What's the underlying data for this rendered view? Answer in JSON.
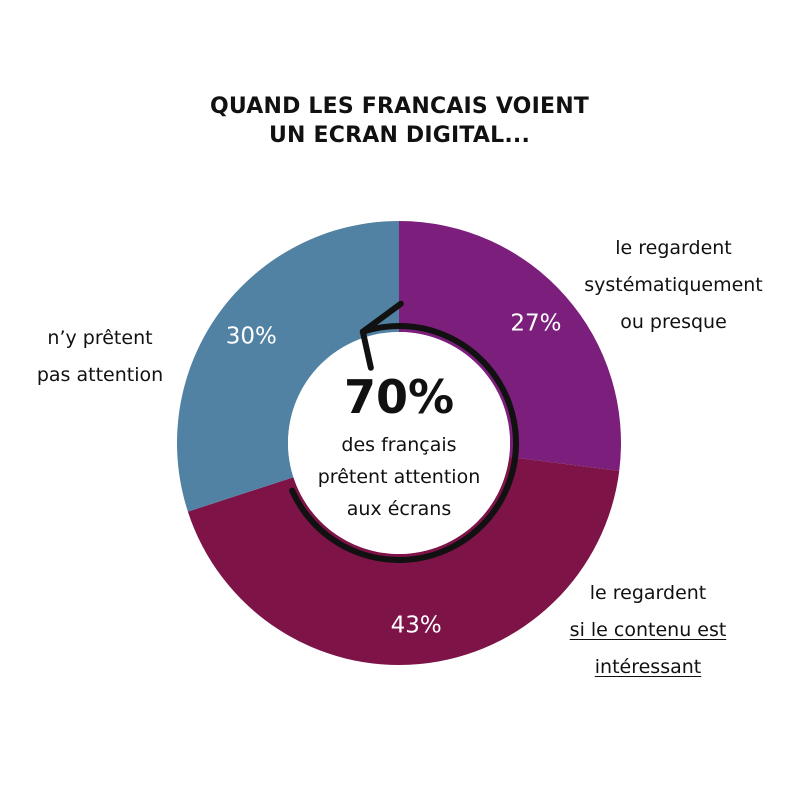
{
  "title": {
    "line1": "QUAND LES FRANCAIS VOIENT",
    "line2": "UN ECRAN DIGITAL..."
  },
  "center": {
    "value": "70%",
    "line1": "des français",
    "line2": "prêtent attention",
    "line3": "aux écrans"
  },
  "chart_data": {
    "type": "pie",
    "donut": true,
    "title": "QUAND LES FRANCAIS VOIENT UN ECRAN DIGITAL...",
    "start": "top, clockwise",
    "slices": [
      {
        "key": "systematique",
        "value": 27,
        "label": "27%",
        "color": "#7c1f7c",
        "annotation": [
          "le regardent",
          "systématiquement",
          "ou presque"
        ]
      },
      {
        "key": "contenu",
        "value": 43,
        "label": "43%",
        "color": "#7d1347",
        "annotation": [
          "le regardent",
          "si le contenu est",
          "intéressant"
        ]
      },
      {
        "key": "pas_attention",
        "value": 30,
        "label": "30%",
        "color": "#5282a3",
        "annotation": [
          "n’y prêtent",
          "pas attention"
        ]
      }
    ]
  },
  "labels": {
    "systematique": {
      "line1": "le regardent",
      "line2": "systématiquement",
      "line3": "ou presque"
    },
    "contenu": {
      "line1": "le regardent",
      "line2": "si le contenu est",
      "line3": "intéressant"
    },
    "pas_attention": {
      "line1": "n’y prêtent",
      "line2": "pas attention"
    }
  },
  "colors": {
    "systematique": "#7c1f7c",
    "contenu": "#7d1347",
    "pas_attention": "#5282a3",
    "arrow": "#111111",
    "center_fill": "#ffffff"
  }
}
